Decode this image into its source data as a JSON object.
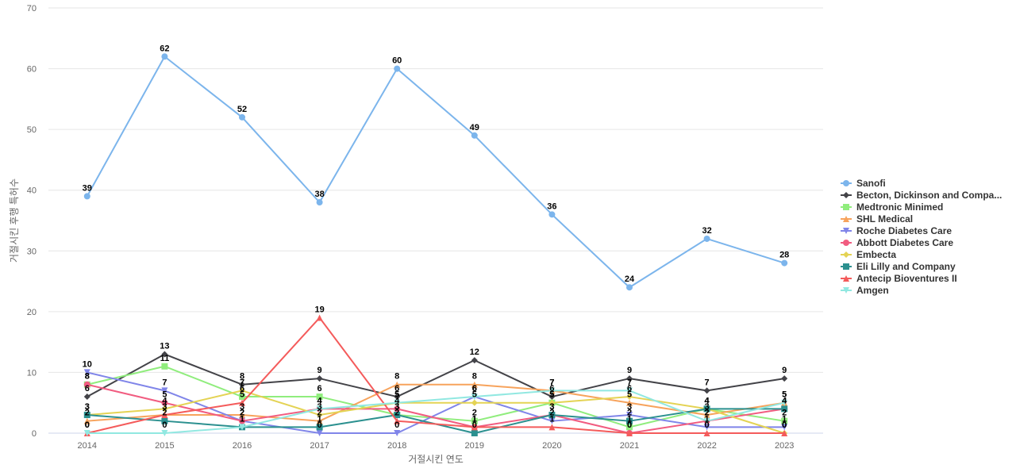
{
  "chart_data": {
    "type": "line",
    "title": "",
    "xlabel": "거절시킨 연도",
    "ylabel": "거절시킨 후행 특허수",
    "x": [
      "2014",
      "2015",
      "2016",
      "2017",
      "2018",
      "2019",
      "2020",
      "2021",
      "2022",
      "2023"
    ],
    "ylim": [
      0,
      70
    ],
    "yticks": [
      0,
      10,
      20,
      30,
      40,
      50,
      60,
      70
    ],
    "grid": true,
    "legend_position": "right",
    "series": [
      {
        "name": "Sanofi",
        "color": "#7cb5ec",
        "marker": "circle",
        "values": [
          39,
          62,
          52,
          38,
          60,
          49,
          36,
          24,
          32,
          28
        ]
      },
      {
        "name": "Becton, Dickinson and Compa...",
        "color": "#434348",
        "marker": "diamond",
        "values": [
          6,
          13,
          8,
          9,
          6,
          12,
          6,
          9,
          7,
          9
        ]
      },
      {
        "name": "Medtronic Minimed",
        "color": "#90ed7d",
        "marker": "square",
        "values": [
          8,
          11,
          6,
          6,
          3,
          2,
          5,
          1,
          4,
          2
        ]
      },
      {
        "name": "SHL Medical",
        "color": "#f7a35c",
        "marker": "triangle",
        "values": [
          2,
          3,
          3,
          2,
          8,
          8,
          7,
          5,
          3,
          5
        ]
      },
      {
        "name": "Roche Diabetes Care",
        "color": "#8085e9",
        "marker": "triangle-down",
        "values": [
          10,
          7,
          2,
          0,
          0,
          6,
          2,
          3,
          1,
          1
        ]
      },
      {
        "name": "Abbott Diabetes Care",
        "color": "#f15c80",
        "marker": "circle",
        "values": [
          8,
          5,
          2,
          4,
          4,
          1,
          3,
          0,
          2,
          4
        ]
      },
      {
        "name": "Embecta",
        "color": "#e4d354",
        "marker": "diamond",
        "values": [
          3,
          4,
          7,
          3,
          5,
          5,
          5,
          6,
          4,
          0
        ]
      },
      {
        "name": "Eli Lilly and Company",
        "color": "#2b908f",
        "marker": "square",
        "values": [
          3,
          2,
          1,
          1,
          3,
          0,
          3,
          2,
          4,
          4
        ]
      },
      {
        "name": "Antecip Bioventures II",
        "color": "#f45b5b",
        "marker": "triangle",
        "values": [
          0,
          3,
          5,
          19,
          2,
          1,
          1,
          0,
          0,
          0
        ]
      },
      {
        "name": "Amgen",
        "color": "#91e8e1",
        "marker": "triangle-down",
        "values": [
          0,
          0,
          1,
          4,
          5,
          6,
          7,
          7,
          2,
          5
        ]
      }
    ]
  }
}
